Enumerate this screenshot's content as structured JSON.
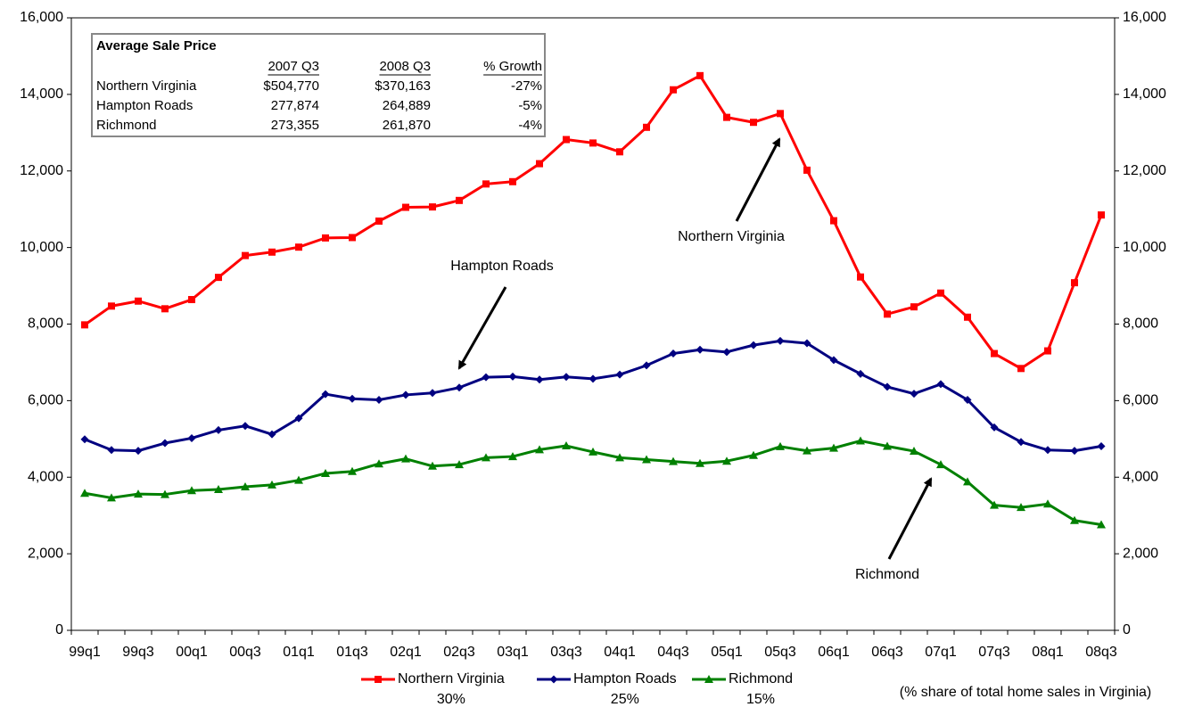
{
  "chart_data": {
    "type": "line",
    "categories": [
      "99q1",
      null,
      "99q3",
      null,
      "00q1",
      null,
      "00q3",
      null,
      "01q1",
      null,
      "01q3",
      null,
      "02q1",
      null,
      "02q3",
      null,
      "03q1",
      null,
      "03q3",
      null,
      "04q1",
      null,
      "04q3",
      null,
      "05q1",
      null,
      "05q3",
      null,
      "06q1",
      null,
      "06q3",
      null,
      "07q1",
      null,
      "07q3",
      null,
      "08q1",
      null,
      "08q3"
    ],
    "series": [
      {
        "name": "Northern Virginia",
        "share": "30%",
        "color": "#ff0000",
        "marker": "square",
        "values": [
          7980,
          8470,
          8600,
          8400,
          8640,
          9220,
          9790,
          9880,
          10010,
          10250,
          10260,
          10690,
          11050,
          11060,
          11230,
          11660,
          11720,
          12190,
          12820,
          12730,
          12500,
          13140,
          14120,
          14490,
          13400,
          13270,
          13500,
          12020,
          10700,
          9230,
          8260,
          8450,
          8810,
          8180,
          7230,
          6840,
          7300,
          9080,
          10850
        ]
      },
      {
        "name": "Hampton Roads",
        "share": "25%",
        "color": "#000080",
        "marker": "diamond",
        "values": [
          4990,
          4710,
          4690,
          4890,
          5020,
          5230,
          5340,
          5120,
          5540,
          6170,
          6050,
          6020,
          6150,
          6200,
          6340,
          6610,
          6630,
          6550,
          6620,
          6570,
          6680,
          6920,
          7230,
          7330,
          7270,
          7450,
          7560,
          7500,
          7060,
          6700,
          6360,
          6180,
          6430,
          6020,
          5300,
          4920,
          4710,
          4690,
          4810
        ]
      },
      {
        "name": "Richmond",
        "share": "15%",
        "color": "#008000",
        "marker": "triangle",
        "values": [
          3580,
          3460,
          3560,
          3550,
          3650,
          3680,
          3750,
          3800,
          3920,
          4100,
          4150,
          4350,
          4480,
          4290,
          4330,
          4510,
          4540,
          4720,
          4820,
          4660,
          4510,
          4460,
          4410,
          4360,
          4420,
          4570,
          4800,
          4690,
          4760,
          4950,
          4810,
          4680,
          4330,
          3880,
          3270,
          3210,
          3300,
          2870,
          2760
        ]
      }
    ],
    "ylim": [
      0,
      16000
    ],
    "yticks": [
      0,
      {
        "value": 2000,
        "label": "2,000"
      },
      {
        "value": 4000,
        "label": "4,000"
      },
      {
        "value": 6000,
        "label": "6,000"
      },
      {
        "value": 8000,
        "label": "8,000"
      },
      {
        "value": 10000,
        "label": "10,000"
      },
      {
        "value": 12000,
        "label": "12,000"
      },
      {
        "value": 14000,
        "label": "14,000"
      },
      {
        "value": 16000,
        "label": "16,000"
      }
    ],
    "right_axis_mirror": true,
    "grid": false,
    "annotations": [
      "Northern Virginia",
      "Hampton Roads",
      "Richmond"
    ],
    "legend_note": "(% share of total home sales in Virginia)",
    "table": {
      "title": "Average Sale Price",
      "columns": [
        "2007 Q3",
        "2008 Q3",
        "% Growth"
      ],
      "rows": [
        {
          "label": "Northern Virginia",
          "cells": [
            "$504,770",
            "$370,163",
            "-27%"
          ]
        },
        {
          "label": "Hampton Roads",
          "cells": [
            "277,874",
            "264,889",
            "-5%"
          ]
        },
        {
          "label": "Richmond",
          "cells": [
            "273,355",
            "261,870",
            "-4%"
          ]
        }
      ]
    }
  }
}
